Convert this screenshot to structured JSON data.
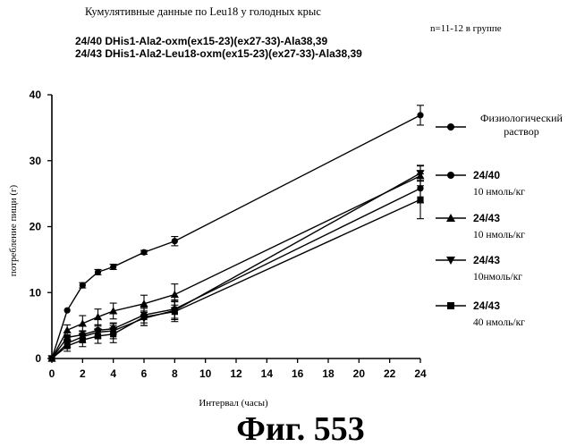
{
  "header": {
    "title": "Кумулятивные данные по Leu18 у голодных крыс",
    "group_note": "n=11-12 в группе",
    "compound_line_1": "24/40 DHis1-Ala2-oxm(ex15-23)(ex27-33)-Ala38,39",
    "compound_line_2": "24/43 DHis1-Ala2-Leu18-oxm(ex15-23)(ex27-33)-Ala38,39"
  },
  "figure_caption": "Фиг.  553",
  "chart_data": {
    "type": "line",
    "xlabel": "Интервал (часы)",
    "ylabel": "потребление пищи (г)",
    "xlim": [
      0,
      24
    ],
    "ylim": [
      0,
      40
    ],
    "xticks": [
      0,
      2,
      4,
      6,
      8,
      10,
      12,
      14,
      16,
      18,
      20,
      22,
      24
    ],
    "yticks": [
      0,
      10,
      20,
      30,
      40
    ],
    "grid": false,
    "legend_position": "right",
    "series": [
      {
        "name_line1": "Физиологический",
        "name_line2": "раствор",
        "marker": "circle",
        "x": [
          0,
          1,
          2,
          3,
          4,
          6,
          8,
          24
        ],
        "y": [
          0,
          7.3,
          11.1,
          13.1,
          13.9,
          16.1,
          17.8,
          36.9
        ],
        "err": [
          0,
          0,
          0.4,
          0.4,
          0.4,
          0.3,
          0.7,
          1.5
        ]
      },
      {
        "name_line1": "24/40",
        "name_line2": "10 нмоль/кг",
        "marker": "circle",
        "x": [
          0,
          1,
          2,
          3,
          4,
          6,
          8,
          24
        ],
        "y": [
          0,
          3.2,
          3.6,
          4.3,
          4.5,
          6.6,
          7.5,
          25.8
        ],
        "err": [
          0,
          0.4,
          0.6,
          0.8,
          0.8,
          1.2,
          1.4,
          2.2
        ]
      },
      {
        "name_line1": "24/43",
        "name_line2": "10 нмоль/кг",
        "marker": "triangle-up",
        "x": [
          0,
          1,
          2,
          3,
          4,
          6,
          8,
          24
        ],
        "y": [
          0,
          4.3,
          5.3,
          6.3,
          7.2,
          8.3,
          9.7,
          27.7
        ],
        "err": [
          0,
          0.8,
          1.2,
          1.2,
          1.2,
          1.3,
          1.6,
          1.5
        ]
      },
      {
        "name_line1": "24/43",
        "name_line2": "10нмоль/кг",
        "marker": "triangle-down",
        "x": [
          0,
          1,
          2,
          3,
          4,
          6,
          8,
          24
        ],
        "y": [
          0,
          2.3,
          3.3,
          4.0,
          4.2,
          6.1,
          7.3,
          28.1
        ],
        "err": [
          0,
          0.6,
          0.9,
          0.9,
          1.2,
          1.1,
          1.4,
          1.2
        ]
      },
      {
        "name_line1": "24/43",
        "name_line2": "40 нмоль/кг",
        "marker": "square",
        "x": [
          0,
          1,
          2,
          3,
          4,
          6,
          8,
          24
        ],
        "y": [
          0,
          1.9,
          2.8,
          3.4,
          3.7,
          6.3,
          7.1,
          24.1
        ],
        "err": [
          0,
          0.8,
          1.0,
          1.1,
          1.3,
          1.3,
          1.5,
          2.9
        ]
      }
    ]
  }
}
